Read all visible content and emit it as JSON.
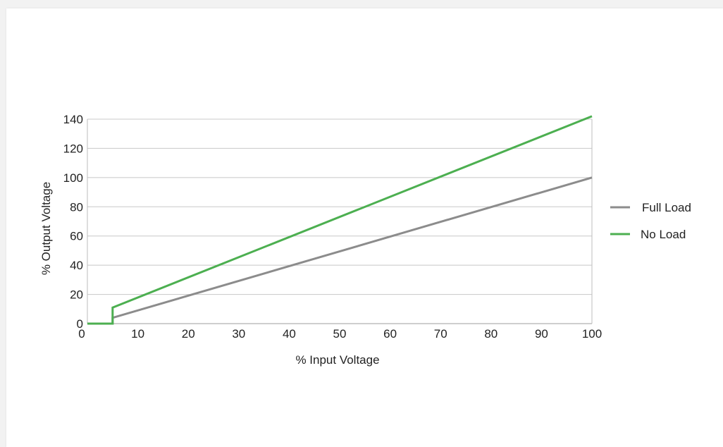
{
  "chart_data": {
    "type": "line",
    "title": "",
    "xlabel": "% Input Voltage",
    "ylabel": "% Output Voltage",
    "xlim": [
      0,
      100
    ],
    "ylim": [
      0,
      140
    ],
    "x_ticks": [
      0,
      10,
      20,
      30,
      40,
      50,
      60,
      70,
      80,
      90,
      100
    ],
    "y_ticks": [
      0,
      20,
      40,
      60,
      80,
      100,
      120,
      140
    ],
    "grid": "horizontal",
    "legend_position": "right",
    "series": [
      {
        "name": "Full Load",
        "color": "#8c8c8c",
        "points": [
          [
            0,
            0
          ],
          [
            5,
            0
          ],
          [
            5,
            4
          ],
          [
            100,
            100
          ]
        ]
      },
      {
        "name": "No Load",
        "color": "#4caf50",
        "points": [
          [
            0,
            0
          ],
          [
            5,
            0
          ],
          [
            5,
            11
          ],
          [
            100,
            142
          ]
        ]
      }
    ]
  }
}
